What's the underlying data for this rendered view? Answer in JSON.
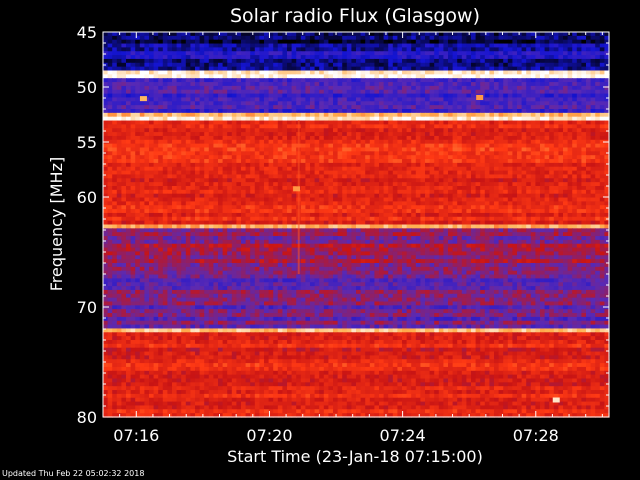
{
  "footer": {
    "updated": "Updated Thu Feb 22 05:02:32 2018"
  },
  "chart_data": {
    "type": "heatmap",
    "title": "Solar radio Flux (Glasgow)",
    "xlabel": "Start Time (23-Jan-18 07:15:00)",
    "ylabel": "Frequency [MHz]",
    "x_unit": "minutes after 07:15:00",
    "xlim": [
      0.0,
      15.2
    ],
    "ylim": [
      45,
      80
    ],
    "y_reversed": true,
    "x_ticks": [
      {
        "value": 1,
        "label": "07:16"
      },
      {
        "value": 5,
        "label": "07:20"
      },
      {
        "value": 9,
        "label": "07:24"
      },
      {
        "value": 13,
        "label": "07:28"
      }
    ],
    "y_ticks": [
      {
        "value": 45,
        "label": "45"
      },
      {
        "value": 50,
        "label": "50"
      },
      {
        "value": 55,
        "label": "55"
      },
      {
        "value": 60,
        "label": "60"
      },
      {
        "value": 70,
        "label": "70"
      },
      {
        "value": 80,
        "label": "80"
      }
    ],
    "bands_mhz": [
      {
        "from": 45.0,
        "to": 46.2,
        "level": 0.06
      },
      {
        "from": 46.2,
        "to": 48.6,
        "level": 0.15
      },
      {
        "from": 48.6,
        "to": 49.2,
        "level": 0.95
      },
      {
        "from": 49.2,
        "to": 52.5,
        "level": 0.28
      },
      {
        "from": 52.5,
        "to": 53.0,
        "level": 0.9
      },
      {
        "from": 53.0,
        "to": 62.5,
        "level": 0.6
      },
      {
        "from": 62.5,
        "to": 63.0,
        "level": 0.78
      },
      {
        "from": 63.0,
        "to": 67.5,
        "level": 0.42
      },
      {
        "from": 67.5,
        "to": 71.8,
        "level": 0.35
      },
      {
        "from": 71.8,
        "to": 72.3,
        "level": 0.93
      },
      {
        "from": 72.3,
        "to": 80.0,
        "level": 0.58
      }
    ],
    "colormap": [
      "#000000",
      "#1414d2",
      "#5a2ab4",
      "#c81414",
      "#ff3a14",
      "#ffb050",
      "#ffffff"
    ],
    "bursts": [
      {
        "t": 1.2,
        "f": 51.1,
        "level": 0.85
      },
      {
        "t": 5.8,
        "f": 59.3,
        "level": 0.8
      },
      {
        "t": 11.3,
        "f": 51.0,
        "level": 0.8
      },
      {
        "t": 13.6,
        "f": 78.5,
        "level": 0.95
      }
    ]
  }
}
